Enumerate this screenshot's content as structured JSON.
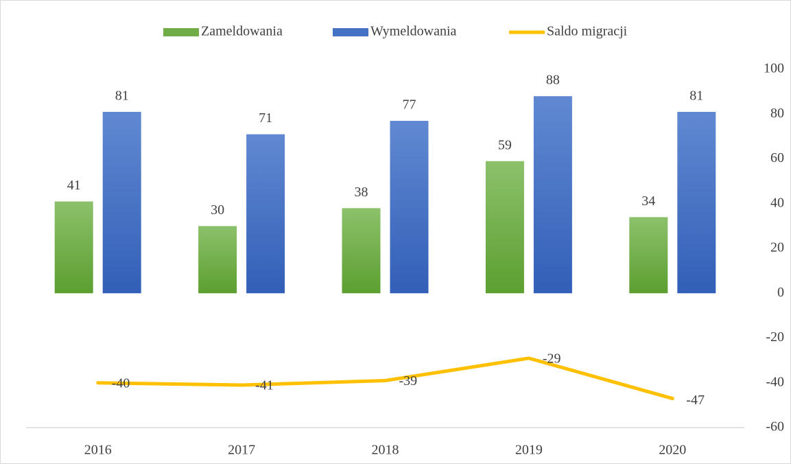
{
  "chart_data": {
    "type": "bar",
    "categories": [
      "2016",
      "2017",
      "2018",
      "2019",
      "2020"
    ],
    "series": [
      {
        "name": "Zameldowania",
        "type": "bar",
        "color": "#70ad47",
        "values": [
          41,
          30,
          38,
          59,
          34
        ]
      },
      {
        "name": "Wymeldowania",
        "type": "bar",
        "color": "#4472c4",
        "values": [
          81,
          71,
          77,
          88,
          81
        ]
      },
      {
        "name": "Saldo migracji",
        "type": "line",
        "color": "#ffc000",
        "values": [
          -40,
          -41,
          -39,
          -29,
          -47
        ]
      }
    ],
    "ylim": [
      -60,
      100
    ],
    "yticks": [
      -60,
      -40,
      -20,
      0,
      20,
      40,
      60,
      80,
      100
    ],
    "y_axis_side": "right",
    "grid": false,
    "legend": "top"
  }
}
